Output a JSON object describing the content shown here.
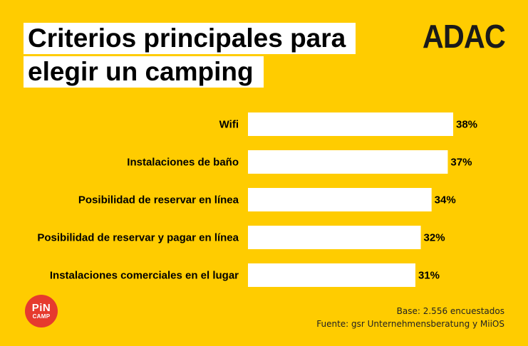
{
  "header": {
    "title_line_1": "Criterios principales para",
    "title_line_2": "elegir un camping",
    "logo_text": "ADAC"
  },
  "chart_data": {
    "type": "bar",
    "orientation": "horizontal",
    "title": "Criterios principales para elegir un camping",
    "categories": [
      "Wifi",
      "Instalaciones de baño",
      "Posibilidad de reservar en línea",
      "Posibilidad de reservar y pagar en línea",
      "Instalaciones comerciales en el lugar"
    ],
    "values": [
      38,
      37,
      34,
      32,
      31
    ],
    "value_labels": [
      "38%",
      "37%",
      "34%",
      "32%",
      "31%"
    ],
    "unit": "%",
    "xlim": [
      0,
      38
    ],
    "grid": false,
    "bar_color": "#FFFFFF"
  },
  "footer": {
    "base": "Base: 2.556 encuestados",
    "source": "Fuente: gsr Unternehmensberatung y MiiOS",
    "pincamp_logo_line1": "PiN",
    "pincamp_logo_line2": "CAMP"
  },
  "colors": {
    "background": "#FFCC00",
    "bar": "#FFFFFF",
    "pincamp": "#E63A2E"
  }
}
